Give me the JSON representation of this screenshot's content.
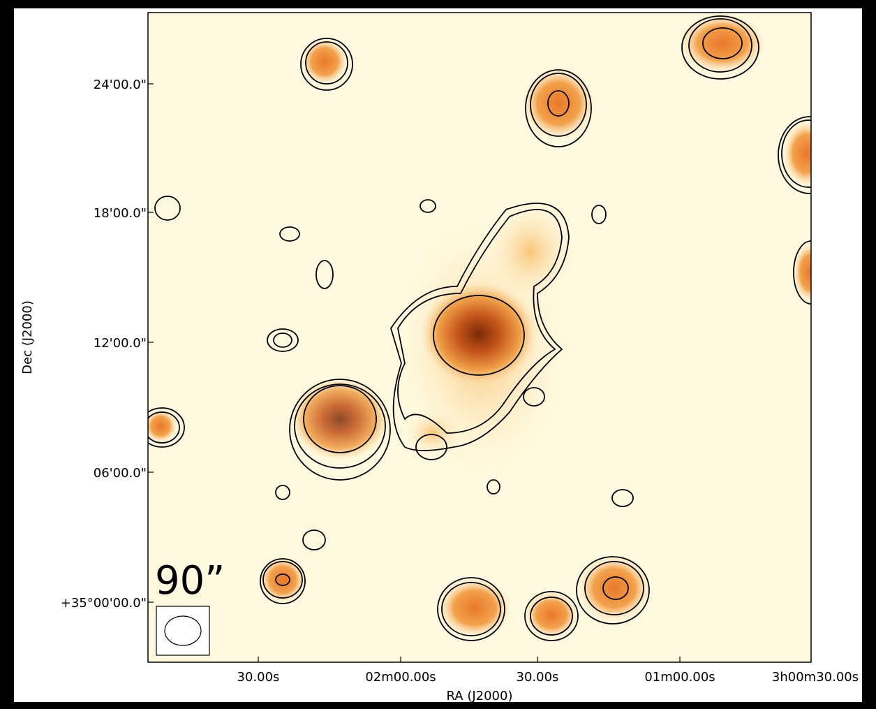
{
  "figure": {
    "x_label": "RA (J2000)",
    "y_label": "Dec (J2000)",
    "x_ticks": [
      "30.00s",
      "02m00.00s",
      "30.00s",
      "01m00.00s",
      "3h00m30.00s"
    ],
    "y_ticks": [
      "24'00.0\"",
      "18'00.0\"",
      "12'00.0\"",
      "06'00.0\"",
      "+35°00'00.0\""
    ],
    "scale_label": "90”"
  }
}
